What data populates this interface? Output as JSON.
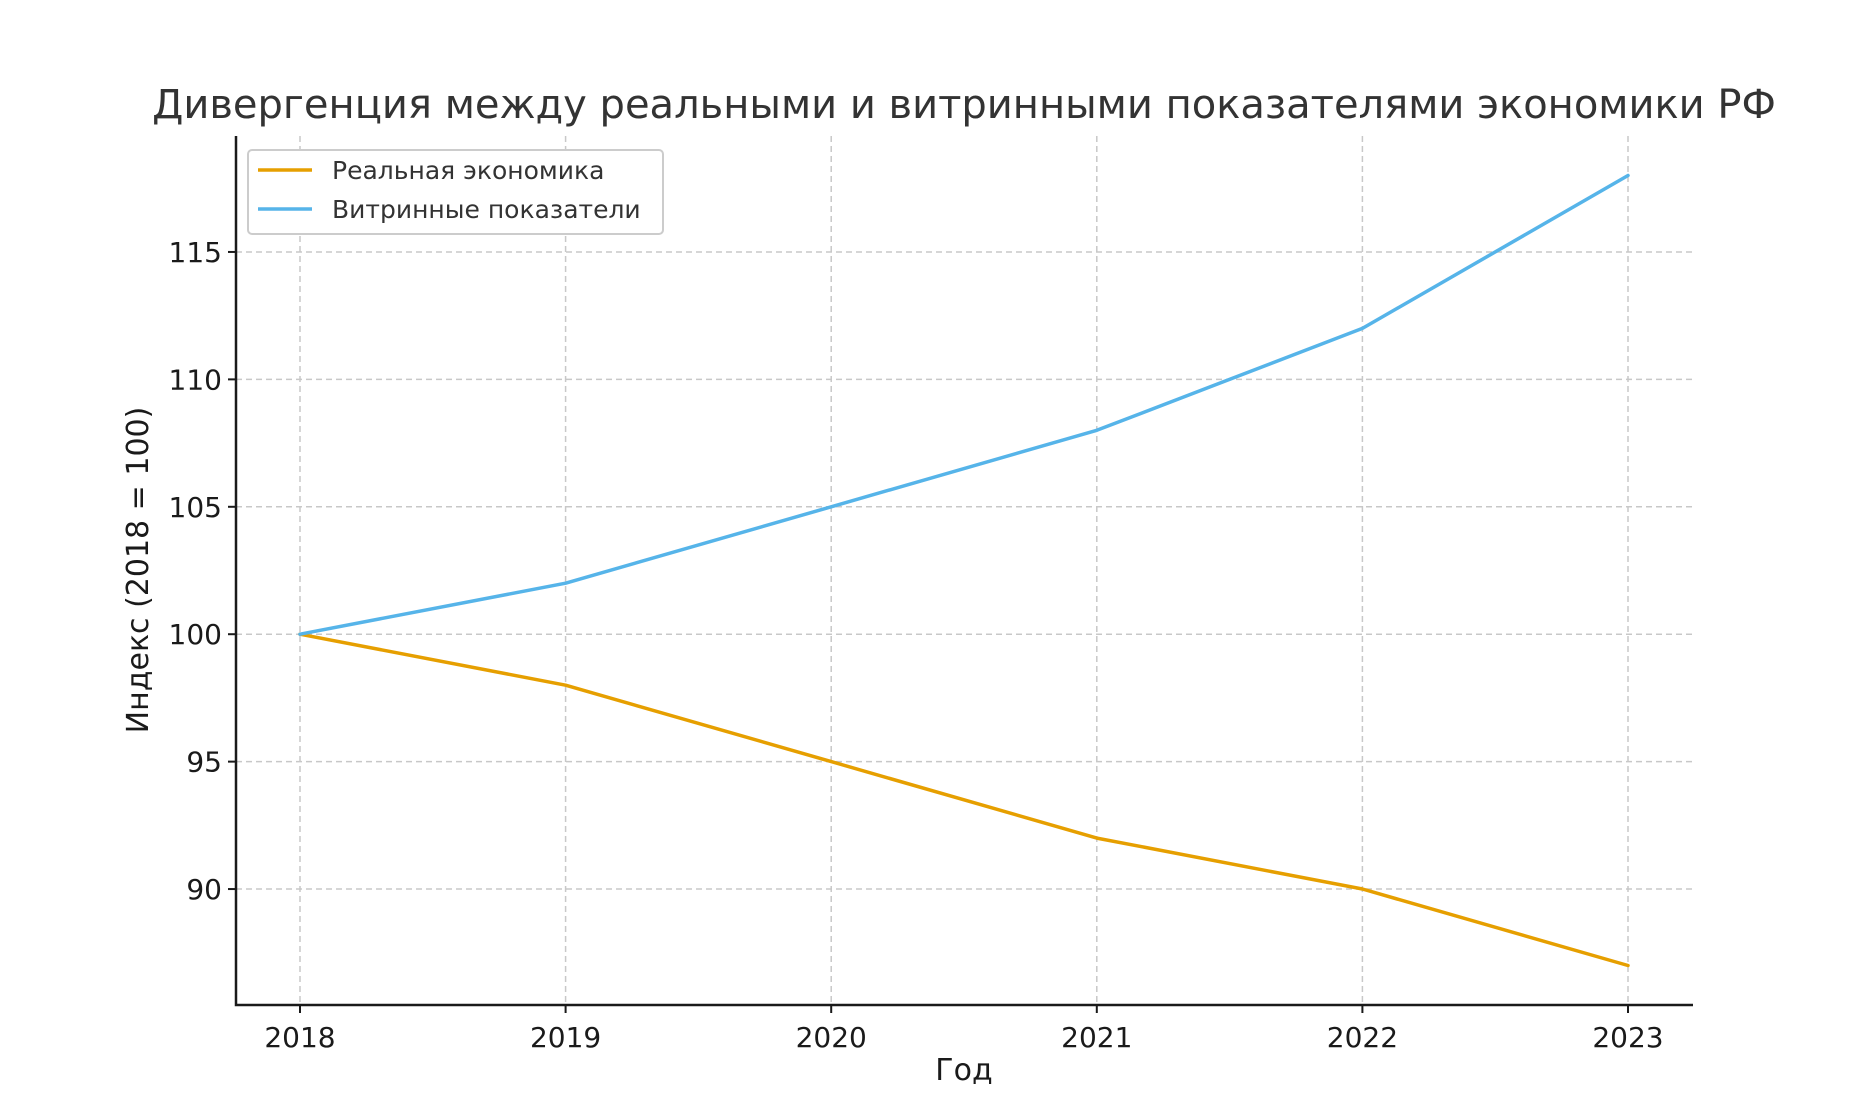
{
  "chart_data": {
    "type": "line",
    "title": "Дивергенция между реальными и витринными показателями экономики РФ",
    "xlabel": "Год",
    "ylabel": "Индекс (2018 = 100)",
    "x": [
      "2018",
      "2019",
      "2020",
      "2021",
      "2022",
      "2023"
    ],
    "y_ticks": [
      "90",
      "95",
      "100",
      "105",
      "110",
      "115"
    ],
    "ylim": [
      85.45,
      119.55
    ],
    "grid": true,
    "legend_position": "top-left",
    "series": [
      {
        "name": "Реальная экономика",
        "color": "#E69F00",
        "values": [
          100,
          98,
          95,
          92,
          90,
          87
        ]
      },
      {
        "name": "Витринные показатели",
        "color": "#56B4E9",
        "values": [
          100,
          102,
          105,
          108,
          112,
          118
        ]
      }
    ]
  }
}
